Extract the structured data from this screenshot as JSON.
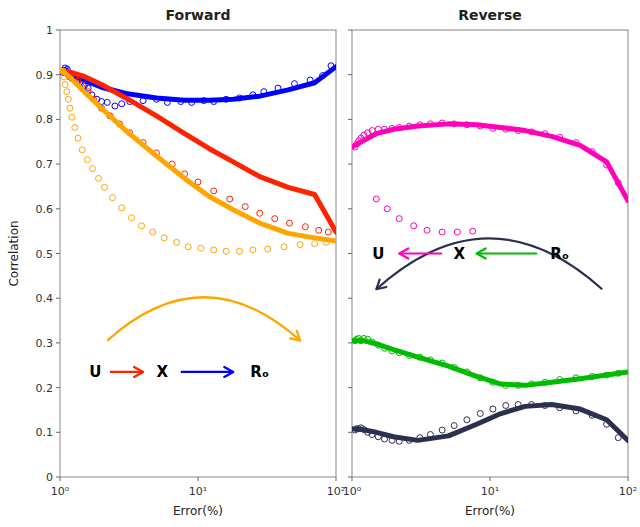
{
  "chart_data": [
    {
      "type": "scatter",
      "title": "Forward",
      "xlabel": "Error(%)",
      "ylabel": "Correlation",
      "log": "x",
      "grid": false,
      "xlim": [
        1,
        100
      ],
      "xticks": [
        {
          "value": 1,
          "label": "10⁰"
        },
        {
          "value": 10,
          "label": "10¹"
        },
        {
          "value": 100,
          "label": "10²"
        }
      ],
      "ylim": [
        0,
        1
      ],
      "yticks": [
        0,
        0.1,
        0.2,
        0.3,
        0.4,
        0.5,
        0.6,
        0.7,
        0.8,
        0.9,
        1
      ],
      "series": [
        {
          "type": "scatter",
          "marker": "circle",
          "color": "#0000FF",
          "x": [
            1.05,
            1.07,
            1.09,
            1.11,
            1.13,
            1.15,
            1.18,
            1.22,
            1.27,
            1.33,
            1.4,
            1.5,
            1.6,
            1.7,
            1.85,
            2.0,
            2.2,
            2.5,
            2.8,
            3.2,
            4.0,
            5.0,
            6.0,
            7.5,
            9.0,
            11.0,
            13.0,
            16.0,
            20.0,
            25.0,
            30.0,
            38.0,
            50.0,
            65.0,
            80.0,
            92.0
          ],
          "values": [
            0.905,
            0.91,
            0.915,
            0.908,
            0.912,
            0.9,
            0.895,
            0.892,
            0.888,
            0.885,
            0.878,
            0.875,
            0.87,
            0.855,
            0.845,
            0.84,
            0.838,
            0.83,
            0.835,
            0.84,
            0.842,
            0.845,
            0.838,
            0.84,
            0.838,
            0.842,
            0.84,
            0.845,
            0.848,
            0.855,
            0.862,
            0.87,
            0.88,
            0.888,
            0.898,
            0.92
          ]
        },
        {
          "type": "line",
          "color": "#0000FF",
          "x": [
            1.0,
            1.2,
            1.5,
            2.0,
            3.0,
            5.0,
            8.0,
            12.0,
            18.0,
            28.0,
            45.0,
            70.0,
            100.0
          ],
          "values": [
            0.91,
            0.9,
            0.888,
            0.872,
            0.858,
            0.848,
            0.843,
            0.843,
            0.845,
            0.852,
            0.866,
            0.882,
            0.918
          ]
        },
        {
          "type": "scatter",
          "marker": "circle",
          "color": "#FF2200",
          "x": [
            1.05,
            1.08,
            1.12,
            1.15,
            1.2,
            1.27,
            1.35,
            1.45,
            1.6,
            1.75,
            2.0,
            2.3,
            2.7,
            3.2,
            4.0,
            5.0,
            6.5,
            8.0,
            10.0,
            13.0,
            17.0,
            22.0,
            28.0,
            36.0,
            46.0,
            60.0,
            75.0,
            88.0
          ],
          "values": [
            0.908,
            0.905,
            0.905,
            0.9,
            0.898,
            0.892,
            0.885,
            0.878,
            0.862,
            0.845,
            0.825,
            0.808,
            0.79,
            0.77,
            0.748,
            0.725,
            0.7,
            0.678,
            0.66,
            0.64,
            0.622,
            0.605,
            0.59,
            0.578,
            0.568,
            0.56,
            0.552,
            0.548
          ]
        },
        {
          "type": "line",
          "color": "#FF2200",
          "x": [
            1.0,
            1.2,
            1.5,
            2.0,
            3.0,
            5.0,
            8.0,
            12.0,
            18.0,
            28.0,
            45.0,
            70.0,
            100.0
          ],
          "values": [
            0.91,
            0.905,
            0.896,
            0.878,
            0.848,
            0.808,
            0.768,
            0.735,
            0.705,
            0.672,
            0.648,
            0.632,
            0.548
          ]
        },
        {
          "type": "scatter",
          "marker": "circle",
          "color": "#FFA500",
          "x": [
            1.05,
            1.07,
            1.09,
            1.12,
            1.15,
            1.18,
            1.22,
            1.28,
            1.35,
            1.45,
            1.58,
            1.72,
            1.9,
            2.1,
            2.4,
            2.8,
            3.3,
            3.9,
            4.7,
            5.7,
            7.0,
            8.5,
            10.5,
            13.0,
            16.0,
            20.0,
            25.0,
            32.0,
            42.0,
            55.0,
            70.0,
            85.0
          ],
          "values": [
            0.908,
            0.895,
            0.878,
            0.862,
            0.845,
            0.825,
            0.805,
            0.782,
            0.758,
            0.732,
            0.71,
            0.69,
            0.668,
            0.648,
            0.625,
            0.602,
            0.58,
            0.562,
            0.548,
            0.535,
            0.525,
            0.515,
            0.512,
            0.508,
            0.505,
            0.505,
            0.508,
            0.51,
            0.515,
            0.52,
            0.522,
            0.525
          ]
        },
        {
          "type": "line",
          "color": "#FFA500",
          "x": [
            1.0,
            1.2,
            1.5,
            2.0,
            3.0,
            5.0,
            8.0,
            12.0,
            18.0,
            28.0,
            45.0,
            70.0,
            100.0
          ],
          "values": [
            0.912,
            0.892,
            0.862,
            0.825,
            0.775,
            0.718,
            0.668,
            0.628,
            0.598,
            0.568,
            0.545,
            0.535,
            0.528
          ]
        }
      ],
      "annotations": [
        {
          "text": "U",
          "x": 1.8,
          "y": 0.235
        },
        {
          "text": "X",
          "x": 5.5,
          "y": 0.235
        },
        {
          "text": "Rₒ",
          "x": 28.0,
          "y": 0.235
        }
      ],
      "arrows": [
        {
          "x": [
            2.2,
            55
          ],
          "y": [
            0.305,
            0.305
          ],
          "color": "#FFA500",
          "line_style": "arc"
        },
        {
          "x": [
            2.3,
            4.0
          ],
          "y": [
            0.235,
            0.235
          ],
          "color": "#FF2200",
          "line_style": "straight"
        },
        {
          "x": [
            7.5,
            18.0
          ],
          "y": [
            0.235,
            0.235
          ],
          "color": "#0000FF",
          "line_style": "straight"
        }
      ]
    },
    {
      "type": "scatter",
      "title": "Reverse",
      "xlabel": "Error(%)",
      "log": "x",
      "grid": false,
      "tick_labels": "x",
      "xlim": [
        1,
        100
      ],
      "xticks": [
        {
          "value": 1,
          "label": "10⁰"
        },
        {
          "value": 10,
          "label": "10¹"
        },
        {
          "value": 100,
          "label": "10²"
        }
      ],
      "ylim": [
        0,
        1
      ],
      "yticks": [
        0,
        0.1,
        0.2,
        0.3,
        0.4,
        0.5,
        0.6,
        0.7,
        0.8,
        0.9,
        1
      ],
      "series": [
        {
          "type": "scatter",
          "marker": "circle",
          "color": "#FF00BB",
          "x": [
            1.05,
            1.08,
            1.12,
            1.16,
            1.22,
            1.3,
            1.4,
            1.55,
            1.72,
            1.95,
            2.2,
            2.6,
            3.1,
            3.7,
            4.5,
            5.5,
            6.8,
            8.5,
            10.5,
            13.0,
            16.0,
            20.0,
            25.0,
            32.0,
            42.0,
            55.0,
            70.0,
            85.0
          ],
          "values": [
            0.738,
            0.745,
            0.752,
            0.758,
            0.765,
            0.77,
            0.775,
            0.778,
            0.778,
            0.78,
            0.782,
            0.785,
            0.788,
            0.79,
            0.792,
            0.79,
            0.788,
            0.785,
            0.78,
            0.778,
            0.775,
            0.772,
            0.768,
            0.76,
            0.748,
            0.728,
            0.698,
            0.658
          ]
        },
        {
          "type": "scatter",
          "marker": "circle",
          "color": "#FF00BB",
          "x": [
            1.5,
            1.8,
            2.2,
            2.8,
            3.5,
            4.5,
            5.8,
            7.5
          ],
          "values": [
            0.622,
            0.6,
            0.578,
            0.562,
            0.552,
            0.548,
            0.548,
            0.55
          ]
        },
        {
          "type": "line",
          "color": "#FF00BB",
          "x": [
            1.0,
            1.2,
            1.5,
            2.0,
            3.0,
            5.0,
            8.0,
            12.0,
            18.0,
            28.0,
            45.0,
            70.0,
            100.0
          ],
          "values": [
            0.738,
            0.752,
            0.768,
            0.778,
            0.785,
            0.79,
            0.788,
            0.782,
            0.775,
            0.762,
            0.742,
            0.705,
            0.618
          ]
        },
        {
          "type": "scatter",
          "marker": "circle",
          "color": "#00BB00",
          "x": [
            1.05,
            1.08,
            1.12,
            1.16,
            1.22,
            1.3,
            1.4,
            1.55,
            1.72,
            1.95,
            2.2,
            2.6,
            3.1,
            3.7,
            4.5,
            5.5,
            6.8,
            8.5,
            10.5,
            13.0,
            16.0,
            20.0,
            25.0,
            32.0,
            42.0,
            55.0,
            70.0,
            85.0
          ],
          "values": [
            0.305,
            0.308,
            0.31,
            0.305,
            0.31,
            0.308,
            0.302,
            0.295,
            0.288,
            0.282,
            0.278,
            0.272,
            0.268,
            0.262,
            0.255,
            0.245,
            0.235,
            0.222,
            0.212,
            0.205,
            0.205,
            0.208,
            0.212,
            0.218,
            0.222,
            0.225,
            0.228,
            0.232
          ]
        },
        {
          "type": "line",
          "color": "#00BB00",
          "x": [
            1.0,
            1.2,
            1.5,
            2.0,
            3.0,
            5.0,
            8.0,
            12.0,
            18.0,
            28.0,
            45.0,
            70.0,
            100.0
          ],
          "values": [
            0.305,
            0.305,
            0.298,
            0.285,
            0.268,
            0.248,
            0.225,
            0.208,
            0.205,
            0.212,
            0.22,
            0.228,
            0.235
          ]
        },
        {
          "type": "scatter",
          "marker": "circle",
          "color": "#2B3050",
          "x": [
            1.05,
            1.08,
            1.12,
            1.16,
            1.22,
            1.3,
            1.4,
            1.55,
            1.72,
            1.95,
            2.2,
            2.6,
            3.1,
            3.7,
            4.5,
            5.5,
            6.8,
            8.5,
            10.5,
            13.0,
            16.0,
            20.0,
            25.0,
            32.0,
            42.0,
            55.0,
            70.0,
            85.0
          ],
          "values": [
            0.105,
            0.108,
            0.108,
            0.11,
            0.106,
            0.1,
            0.095,
            0.09,
            0.085,
            0.082,
            0.08,
            0.082,
            0.088,
            0.095,
            0.105,
            0.115,
            0.128,
            0.142,
            0.152,
            0.16,
            0.162,
            0.162,
            0.16,
            0.155,
            0.148,
            0.138,
            0.118,
            0.088
          ]
        },
        {
          "type": "line",
          "color": "#2B3050",
          "x": [
            1.0,
            1.2,
            1.5,
            2.0,
            3.0,
            5.0,
            8.0,
            12.0,
            18.0,
            28.0,
            45.0,
            70.0,
            100.0
          ],
          "values": [
            0.108,
            0.106,
            0.1,
            0.09,
            0.082,
            0.092,
            0.118,
            0.142,
            0.158,
            0.162,
            0.152,
            0.128,
            0.082
          ]
        }
      ],
      "annotations": [
        {
          "text": "U",
          "x": 1.55,
          "y": 0.5
        },
        {
          "text": "X",
          "x": 6.0,
          "y": 0.5
        },
        {
          "text": "Rₒ",
          "x": 32.0,
          "y": 0.5
        }
      ],
      "arrows": [
        {
          "x": [
            65,
            1.5
          ],
          "y": [
            0.42,
            0.42
          ],
          "color": "#2B3050",
          "line_style": "arc"
        },
        {
          "x": [
            4.5,
            2.2
          ],
          "y": [
            0.5,
            0.5
          ],
          "color": "#FF00BB",
          "line_style": "straight"
        },
        {
          "x": [
            22.0,
            8.0
          ],
          "y": [
            0.5,
            0.5
          ],
          "color": "#00BB00",
          "line_style": "straight"
        }
      ]
    }
  ]
}
